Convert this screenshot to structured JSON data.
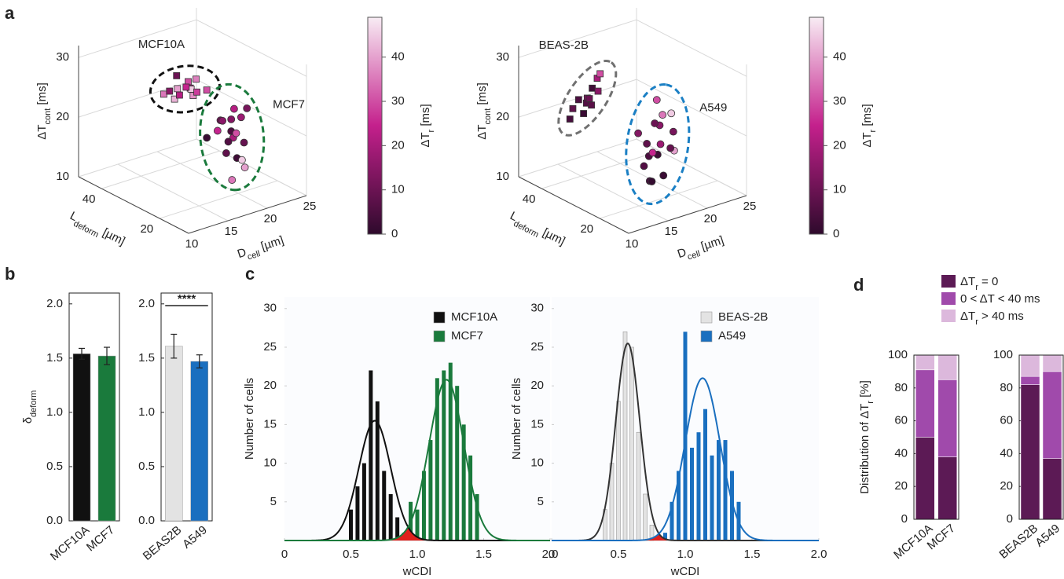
{
  "panel_labels": [
    "a",
    "b",
    "c",
    "d"
  ],
  "chart_data": [
    {
      "type": "scatter3d",
      "x_label": [
        "D",
        "cell",
        " [µm]"
      ],
      "y_label": [
        "L",
        "deform",
        " [µm]"
      ],
      "z_label": [
        "ΔT",
        "cont",
        " [ms]"
      ],
      "xlim": [
        10,
        25
      ],
      "ylim": [
        10,
        48
      ],
      "zlim": [
        10,
        32
      ],
      "xticks": [
        10,
        15,
        20,
        25
      ],
      "yticks": [
        20,
        40
      ],
      "zticks": [
        10,
        20,
        30
      ],
      "colorbar": {
        "label": [
          "ΔT",
          "r",
          " [ms]"
        ],
        "lim": [
          0,
          49
        ],
        "ticks": [
          0,
          10,
          20,
          30,
          40
        ],
        "colors": [
          "#2e0a2c",
          "#c4208c",
          "#f8ecf4"
        ]
      },
      "series": [
        {
          "name": "MCF10A",
          "color": "#111111",
          "marker": "square",
          "x": [
            13,
            14,
            15,
            12,
            14,
            13,
            15,
            14,
            16,
            13,
            14,
            12,
            15,
            14
          ],
          "y": [
            22,
            21,
            23,
            24,
            20,
            19,
            22,
            25,
            20,
            23,
            18,
            22,
            21,
            24
          ],
          "z": [
            30,
            31,
            29,
            29,
            30,
            31,
            28,
            31,
            29,
            28,
            30,
            30,
            31,
            28
          ],
          "c": [
            40,
            30,
            20,
            35,
            45,
            25,
            38,
            10,
            30,
            42,
            28,
            15,
            36,
            22
          ]
        },
        {
          "name": "MCF7",
          "color": "#1a7a3c",
          "marker": "circle",
          "x": [
            17,
            18,
            19,
            18,
            17,
            19,
            20,
            18,
            17,
            19,
            18,
            20,
            16,
            19,
            18,
            17,
            20,
            18
          ],
          "y": [
            18,
            17,
            19,
            20,
            16,
            18,
            17,
            15,
            19,
            16,
            18,
            19,
            20,
            15,
            17,
            14,
            18,
            16
          ],
          "z": [
            24,
            22,
            20,
            23,
            19,
            21,
            25,
            18,
            22,
            17,
            20,
            23,
            21,
            16,
            24,
            15,
            19,
            26
          ],
          "c": [
            10,
            5,
            20,
            15,
            8,
            30,
            12,
            3,
            25,
            45,
            6,
            18,
            2,
            40,
            14,
            35,
            9,
            22
          ]
        }
      ]
    },
    {
      "type": "scatter3d",
      "x_label": [
        "D",
        "cell",
        " [µm]"
      ],
      "y_label": [
        "L",
        "deform",
        " [µm]"
      ],
      "z_label": [
        "ΔT",
        "cont",
        " [ms]"
      ],
      "xlim": [
        10,
        25
      ],
      "ylim": [
        10,
        48
      ],
      "zlim": [
        10,
        32
      ],
      "xticks": [
        10,
        15,
        20,
        25
      ],
      "yticks": [
        20,
        40
      ],
      "zticks": [
        10,
        20,
        30
      ],
      "colorbar": {
        "label": [
          "ΔT",
          "r",
          " [ms]"
        ],
        "lim": [
          0,
          49
        ],
        "ticks": [
          0,
          10,
          20,
          30,
          40
        ],
        "colors": [
          "#2e0a2c",
          "#c4208c",
          "#f8ecf4"
        ]
      },
      "series": [
        {
          "name": "BEAS-2B",
          "color": "#707070",
          "marker": "square",
          "x": [
            11,
            12,
            11,
            13,
            12,
            11,
            12,
            13,
            11,
            12,
            12,
            13
          ],
          "y": [
            30,
            28,
            32,
            29,
            31,
            27,
            30,
            28,
            33,
            29,
            26,
            31
          ],
          "z": [
            27,
            29,
            25,
            30,
            24,
            28,
            26,
            31,
            23,
            27,
            29,
            25
          ],
          "c": [
            5,
            3,
            8,
            20,
            2,
            12,
            6,
            30,
            4,
            10,
            15,
            7
          ]
        },
        {
          "name": "A549",
          "color": "#1a7fc4",
          "marker": "circle",
          "x": [
            16,
            17,
            18,
            17,
            16,
            18,
            17,
            19,
            16,
            18,
            17,
            18,
            16,
            17,
            19,
            18,
            17,
            16
          ],
          "y": [
            20,
            19,
            21,
            22,
            18,
            20,
            17,
            19,
            21,
            16,
            20,
            22,
            19,
            18,
            20,
            17,
            21,
            23
          ],
          "z": [
            20,
            18,
            22,
            17,
            19,
            24,
            15,
            21,
            16,
            19,
            23,
            26,
            14,
            20,
            18,
            25,
            13,
            21
          ],
          "c": [
            8,
            3,
            15,
            5,
            25,
            35,
            2,
            12,
            6,
            40,
            10,
            30,
            4,
            18,
            9,
            45,
            1,
            14
          ]
        }
      ]
    },
    {
      "type": "bar",
      "y_label": [
        "δ",
        "deform"
      ],
      "categories": [
        "MCF10A",
        "MCF7"
      ],
      "values": [
        1.54,
        1.52
      ],
      "errors": [
        0.05,
        0.08
      ],
      "colors": [
        "#111111",
        "#1a7a3c"
      ],
      "ylim": [
        0,
        2.1
      ],
      "yticks": [
        {
          "value": 0,
          "label": "0.0"
        },
        0.5,
        {
          "value": 1,
          "label": "1.0"
        },
        1.5,
        {
          "value": 2,
          "label": "2.0"
        }
      ]
    },
    {
      "type": "bar",
      "categories": [
        "BEAS2B",
        "A549"
      ],
      "values": [
        1.61,
        1.47
      ],
      "errors": [
        0.11,
        0.06
      ],
      "colors": [
        "#e3e3e3",
        "#1a6fbf"
      ],
      "annotation": "****",
      "ylim": [
        0,
        2.1
      ],
      "yticks": [
        {
          "value": 0,
          "label": "0.0"
        },
        0.5,
        {
          "value": 1,
          "label": "1.0"
        },
        1.5,
        {
          "value": 2,
          "label": "2.0"
        }
      ]
    },
    {
      "type": "hist",
      "x_label": "wCDI",
      "y_label": "Number of cells",
      "xlim": [
        0,
        2
      ],
      "xticks": [
        0,
        0.5,
        {
          "value": 1,
          "label": "1.0"
        },
        1.5,
        {
          "value": 2,
          "label": "2.0"
        }
      ],
      "ylim": [
        0,
        31.5
      ],
      "yticks": [
        5,
        10,
        15,
        20,
        25,
        30
      ],
      "overlap_color": "#e0201c",
      "series": [
        {
          "name": "MCF10A",
          "color": "#111111",
          "x": [
            0.5,
            0.55,
            0.6,
            0.65,
            0.7,
            0.75,
            0.8,
            0.85,
            0.9
          ],
          "values": [
            4,
            7,
            10,
            22,
            18,
            9,
            6,
            3,
            1
          ],
          "fit": {
            "mean": 0.68,
            "sd": 0.12,
            "peak": 15.5
          }
        },
        {
          "name": "MCF7",
          "color": "#1a7a3c",
          "x": [
            0.95,
            1.0,
            1.05,
            1.1,
            1.15,
            1.2,
            1.25,
            1.3,
            1.35,
            1.4,
            1.45
          ],
          "values": [
            5,
            4,
            9,
            13,
            21,
            22,
            23,
            20,
            15,
            11,
            6
          ],
          "fit": {
            "mean": 1.22,
            "sd": 0.13,
            "peak": 20.8
          }
        }
      ]
    },
    {
      "type": "hist",
      "x_label": "wCDI",
      "y_label": "Number of cells",
      "xlim": [
        0,
        2
      ],
      "xticks": [
        0,
        0.5,
        {
          "value": 1,
          "label": "1.0"
        },
        1.5,
        {
          "value": 2,
          "label": "2.0"
        }
      ],
      "ylim": [
        0,
        31.5
      ],
      "yticks": [
        5,
        10,
        15,
        20,
        25,
        30
      ],
      "overlap_color": "#e0201c",
      "series": [
        {
          "name": "BEAS-2B",
          "color": "#e3e3e3",
          "x": [
            0.4,
            0.45,
            0.5,
            0.55,
            0.6,
            0.65,
            0.7,
            0.75
          ],
          "values": [
            4,
            10,
            18,
            27,
            25,
            14,
            6,
            2
          ],
          "fit": {
            "mean": 0.57,
            "sd": 0.09,
            "peak": 25.5
          }
        },
        {
          "name": "A549",
          "color": "#1a6fbf",
          "x": [
            0.85,
            0.9,
            0.95,
            1.0,
            1.05,
            1.1,
            1.15,
            1.2,
            1.25,
            1.3,
            1.35,
            1.4
          ],
          "values": [
            1,
            5,
            9,
            27,
            12,
            14,
            17,
            11,
            13,
            13,
            9,
            5
          ],
          "fit": {
            "mean": 1.13,
            "sd": 0.13,
            "peak": 21
          }
        }
      ]
    },
    {
      "type": "stacked_bar",
      "y_label": [
        "Distribution of ΔT",
        "r",
        " [%]"
      ],
      "categories": [
        "MCF10A",
        "MCF7"
      ],
      "ylim": [
        0,
        100
      ],
      "yticks": [
        0,
        20,
        40,
        60,
        80,
        100
      ],
      "series": [
        {
          "name": [
            "ΔT",
            "r",
            " = 0"
          ],
          "color": "#5c1a55",
          "values": [
            50,
            38
          ]
        },
        {
          "name": [
            "0 < ΔT < 40 ms"
          ],
          "color": "#a04aab",
          "values": [
            41,
            47
          ]
        },
        {
          "name": [
            "ΔT",
            "r",
            " > 40 ms"
          ],
          "color": "#dcb8dc",
          "values": [
            9,
            15
          ]
        }
      ]
    },
    {
      "type": "stacked_bar",
      "categories": [
        "BEAS2B",
        "A549"
      ],
      "ylim": [
        0,
        100
      ],
      "yticks": [
        0,
        20,
        40,
        60,
        80,
        100
      ],
      "series": [
        {
          "color": "#5c1a55",
          "values": [
            82,
            37
          ]
        },
        {
          "color": "#a04aab",
          "values": [
            5,
            53
          ]
        },
        {
          "color": "#dcb8dc",
          "values": [
            13,
            10
          ]
        }
      ]
    }
  ]
}
